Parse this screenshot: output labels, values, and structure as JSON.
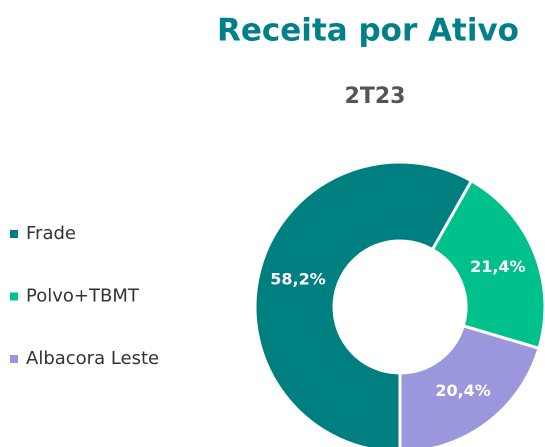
{
  "chart_data": {
    "type": "donut",
    "title": "Receita por Ativo",
    "subtitle": "2T23",
    "categories": [
      "Frade",
      "Polvo+TBMT",
      "Albacora Leste"
    ],
    "values": [
      58.2,
      21.4,
      20.4
    ],
    "value_labels": [
      "58,2%",
      "21,4%",
      "20,4%"
    ],
    "colors": [
      "#007f80",
      "#00c08b",
      "#9b97dc"
    ],
    "legend": "left"
  }
}
